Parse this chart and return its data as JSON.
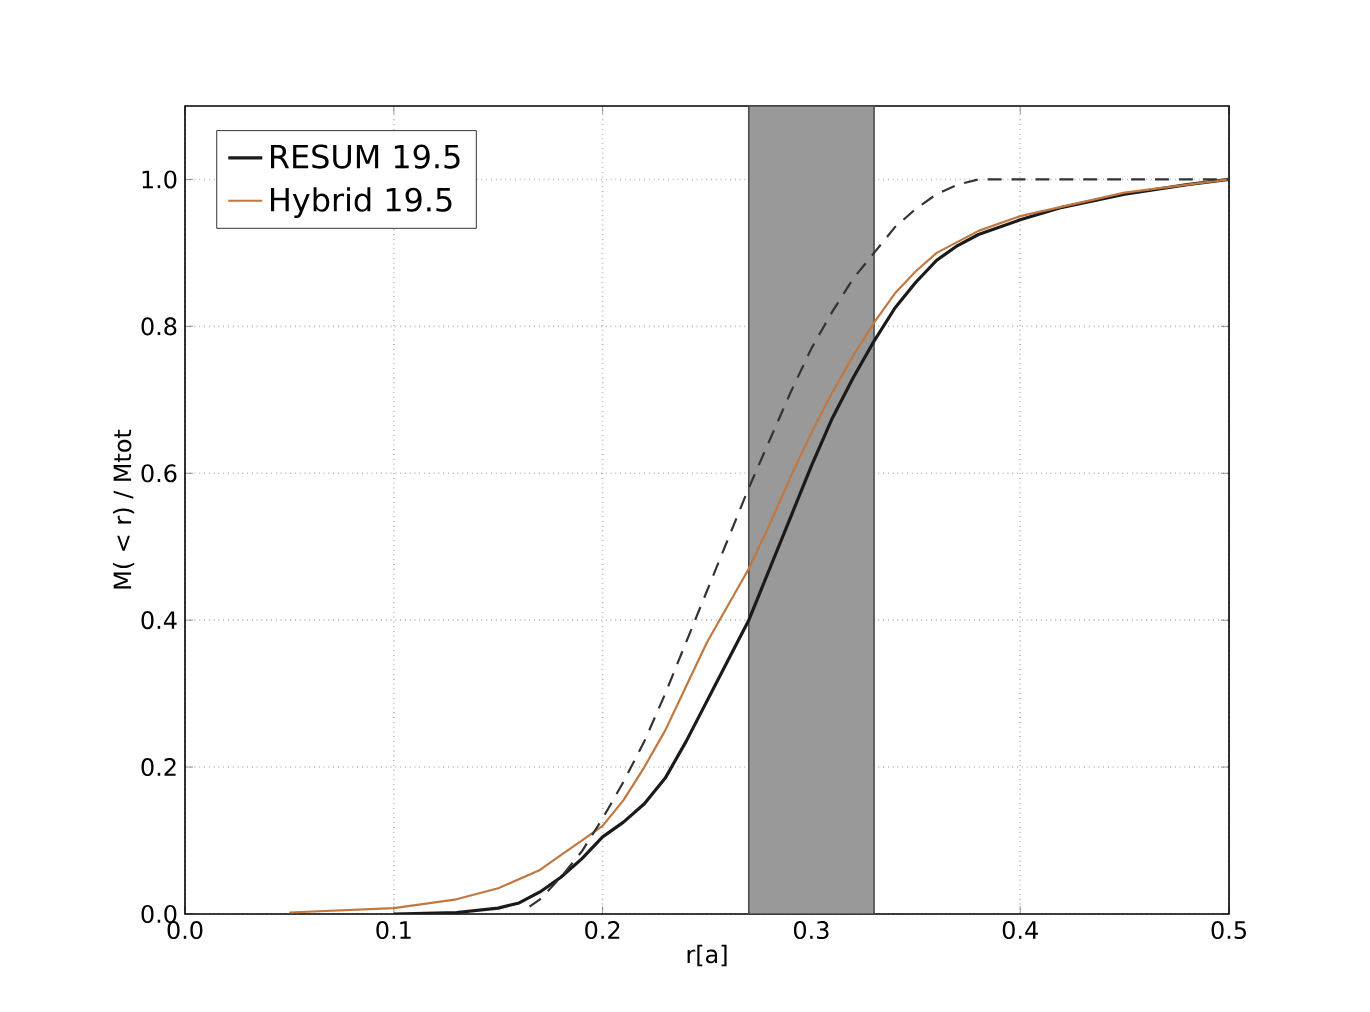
{
  "chart_data": {
    "type": "line",
    "xlabel": "r[a]",
    "ylabel": "M( < r) / Mtot",
    "xlim": [
      0,
      0.5
    ],
    "ylim": [
      0,
      1.1
    ],
    "xticks": [
      {
        "value": 0,
        "label": "0.0"
      },
      0.1,
      0.2,
      0.3,
      0.4,
      0.5
    ],
    "yticks": [
      {
        "value": 0,
        "label": "0.0"
      },
      0.2,
      0.4,
      0.6,
      0.8,
      {
        "value": 1,
        "label": "1.0"
      }
    ],
    "grid": true,
    "legend": "top left",
    "bands": [
      {
        "axis": "x",
        "from": 0.27,
        "to": 0.33,
        "color": "#999999"
      }
    ],
    "series": [
      {
        "name": "RESUM 19.5",
        "color": "#1a1a1a",
        "line_style": "solid",
        "x": [
          0.1,
          0.13,
          0.15,
          0.16,
          0.17,
          0.18,
          0.19,
          0.2,
          0.21,
          0.22,
          0.23,
          0.24,
          0.25,
          0.26,
          0.27,
          0.28,
          0.29,
          0.3,
          0.31,
          0.32,
          0.33,
          0.34,
          0.35,
          0.36,
          0.37,
          0.38,
          0.4,
          0.42,
          0.45,
          0.48,
          0.5
        ],
        "values": [
          0,
          0.002,
          0.008,
          0.015,
          0.03,
          0.05,
          0.075,
          0.105,
          0.125,
          0.15,
          0.185,
          0.235,
          0.29,
          0.345,
          0.4,
          0.47,
          0.54,
          0.61,
          0.675,
          0.73,
          0.78,
          0.825,
          0.86,
          0.89,
          0.91,
          0.925,
          0.945,
          0.962,
          0.98,
          0.993,
          1.0
        ]
      },
      {
        "name": "Hybrid 19.5",
        "color": "#c07840",
        "line_style": "solid",
        "x": [
          0.05,
          0.1,
          0.13,
          0.15,
          0.17,
          0.18,
          0.19,
          0.2,
          0.21,
          0.22,
          0.23,
          0.24,
          0.25,
          0.26,
          0.27,
          0.28,
          0.29,
          0.3,
          0.31,
          0.32,
          0.33,
          0.34,
          0.35,
          0.36,
          0.38,
          0.4,
          0.45,
          0.5
        ],
        "values": [
          0.002,
          0.008,
          0.02,
          0.035,
          0.06,
          0.08,
          0.1,
          0.12,
          0.155,
          0.2,
          0.25,
          0.31,
          0.37,
          0.42,
          0.47,
          0.53,
          0.595,
          0.655,
          0.71,
          0.76,
          0.805,
          0.845,
          0.875,
          0.9,
          0.93,
          0.95,
          0.982,
          1.0
        ]
      },
      {
        "color": "#333333",
        "line_style": "dashed",
        "x": [
          0.165,
          0.17,
          0.18,
          0.19,
          0.2,
          0.21,
          0.22,
          0.23,
          0.24,
          0.25,
          0.26,
          0.27,
          0.28,
          0.29,
          0.3,
          0.31,
          0.32,
          0.33,
          0.34,
          0.35,
          0.36,
          0.37,
          0.38,
          0.5
        ],
        "values": [
          0.01,
          0.02,
          0.05,
          0.085,
          0.13,
          0.18,
          0.235,
          0.3,
          0.37,
          0.44,
          0.51,
          0.58,
          0.645,
          0.71,
          0.77,
          0.82,
          0.865,
          0.9,
          0.935,
          0.96,
          0.98,
          0.993,
          1.0,
          1.0
        ]
      }
    ]
  }
}
